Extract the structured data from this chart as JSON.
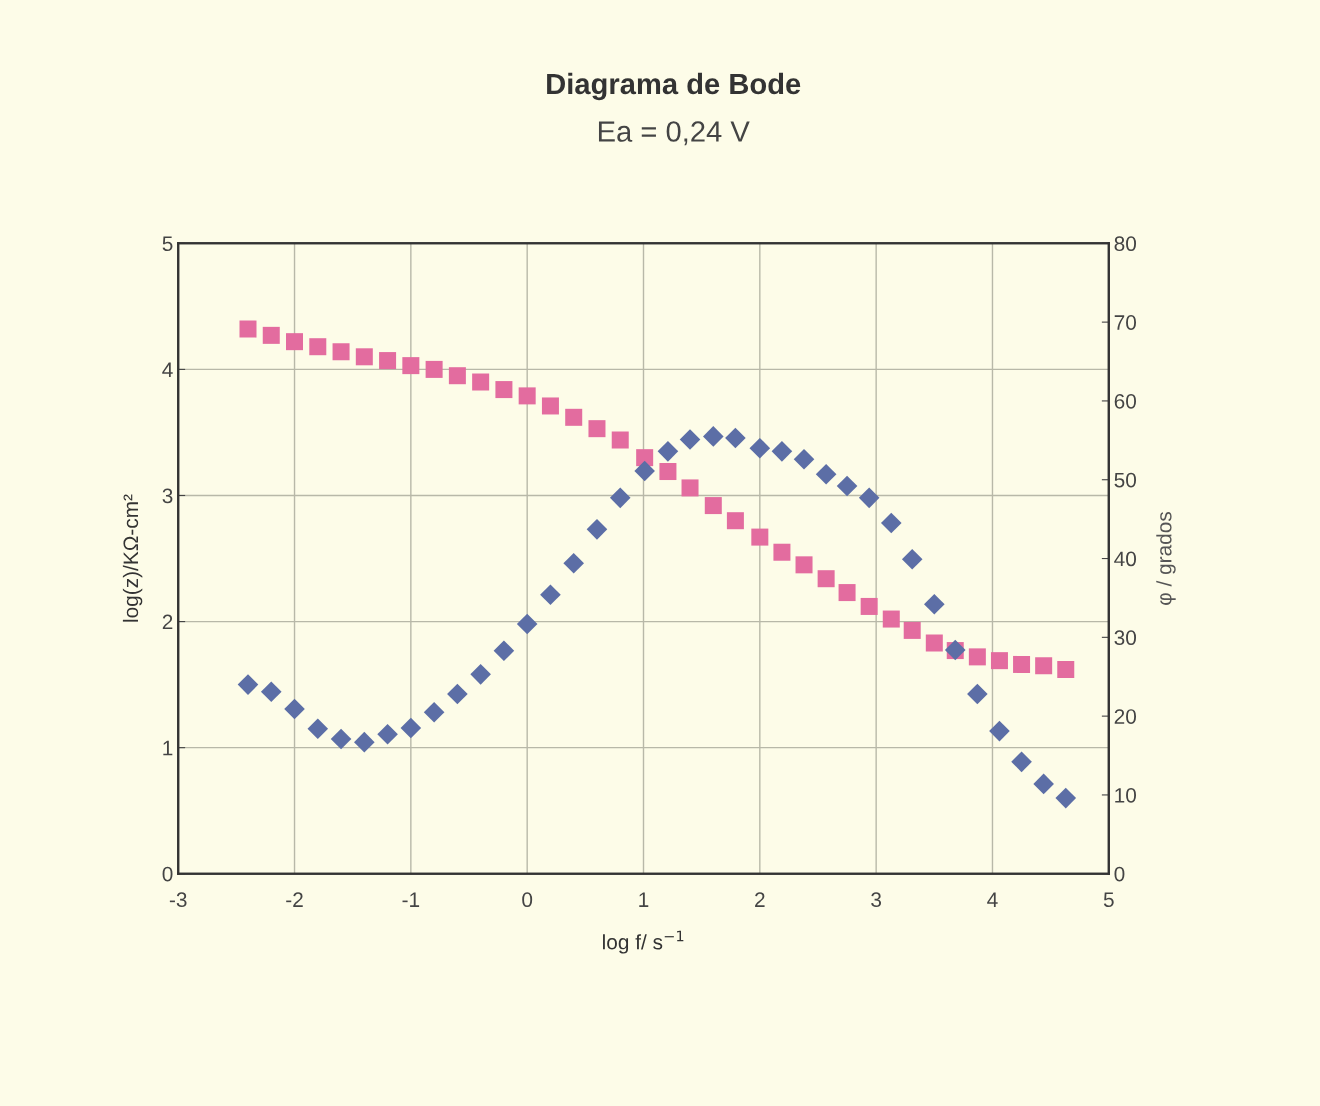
{
  "chart_data": {
    "type": "scatter",
    "title": "Diagrama de Bode",
    "subtitle": "Ea = 0,24 V",
    "xlabel": "log f/ s$^{−1}$",
    "ylabel": "log(z)/KΩ-cm²",
    "y2label": "φ / grados",
    "x": [
      -2.4,
      -2.2,
      -2.0,
      -1.8,
      -1.6,
      -1.4,
      -1.2,
      -1.0,
      -0.8,
      -0.6,
      -0.4,
      -0.2,
      0.0,
      0.2,
      0.4,
      0.6,
      0.8,
      1.01,
      1.21,
      1.4,
      1.6,
      1.79,
      2.0,
      2.19,
      2.38,
      2.57,
      2.75,
      2.94,
      3.13,
      3.31,
      3.5,
      3.68,
      3.87,
      4.06,
      4.25,
      4.44,
      4.63
    ],
    "series": [
      {
        "color": "#e36c9f",
        "marker": "square",
        "values": [
          4.32,
          4.27,
          4.22,
          4.18,
          4.14,
          4.1,
          4.07,
          4.03,
          4.0,
          3.95,
          3.9,
          3.84,
          3.79,
          3.71,
          3.62,
          3.53,
          3.44,
          3.3,
          3.19,
          3.06,
          2.92,
          2.8,
          2.67,
          2.55,
          2.45,
          2.34,
          2.23,
          2.12,
          2.02,
          1.93,
          1.83,
          1.77,
          1.72,
          1.69,
          1.66,
          1.65,
          1.62
        ]
      },
      {
        "color": "#5c6ea6",
        "marker": "diamond",
        "axis": "y2",
        "values": [
          24.0,
          23.1,
          20.9,
          18.4,
          17.1,
          16.7,
          17.7,
          18.5,
          20.5,
          22.8,
          25.3,
          28.3,
          31.7,
          35.4,
          39.4,
          43.7,
          47.7,
          51.1,
          53.6,
          55.1,
          55.5,
          55.3,
          54.0,
          53.6,
          52.6,
          50.7,
          49.2,
          47.7,
          44.5,
          39.9,
          34.2,
          28.4,
          22.8,
          18.1,
          14.2,
          11.4,
          9.6
        ]
      }
    ],
    "xlim": [
      -3,
      5
    ],
    "xticks": [
      -3,
      -2,
      -1,
      0,
      1,
      2,
      3,
      4,
      5
    ],
    "ylim": [
      0,
      5
    ],
    "yticks": [
      0,
      1,
      2,
      3,
      4,
      5
    ],
    "y2lim": [
      0,
      80
    ],
    "y2ticks": [
      0,
      10,
      20,
      30,
      40,
      50,
      60,
      70,
      80
    ],
    "grid": true
  }
}
